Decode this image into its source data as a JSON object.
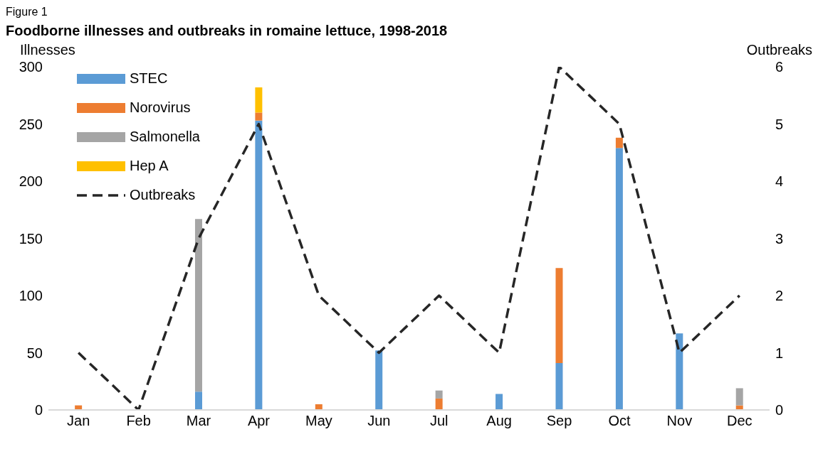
{
  "chart_data": {
    "type": "bar",
    "title": "Foodborne illnesses and outbreaks in romaine lettuce, 1998-2018",
    "annotations": [
      "Figure 1"
    ],
    "ylabel": "Illnesses",
    "y2label": "Outbreaks",
    "categories": [
      "Jan",
      "Feb",
      "Mar",
      "Apr",
      "May",
      "Jun",
      "Jul",
      "Aug",
      "Sep",
      "Oct",
      "Nov",
      "Dec"
    ],
    "stacked": true,
    "ylim": [
      0,
      300
    ],
    "yticks": [
      0,
      50,
      100,
      150,
      200,
      250,
      300
    ],
    "y2lim": [
      0,
      6
    ],
    "y2ticks": [
      0,
      1,
      2,
      3,
      4,
      5,
      6
    ],
    "legend": "top left",
    "series": [
      {
        "name": "STEC",
        "color": "#5b9bd5",
        "values": [
          0,
          0,
          16,
          253,
          0,
          52,
          0,
          14,
          41,
          229,
          67,
          0
        ]
      },
      {
        "name": "Norovirus",
        "color": "#ed7d31",
        "values": [
          4,
          0,
          0,
          7,
          5,
          0,
          10,
          0,
          83,
          9,
          0,
          4
        ]
      },
      {
        "name": "Salmonella",
        "color": "#a5a5a5",
        "values": [
          0,
          0,
          151,
          0,
          0,
          0,
          7,
          0,
          0,
          0,
          0,
          15
        ]
      },
      {
        "name": "Hep A",
        "color": "#ffc000",
        "values": [
          0,
          0,
          0,
          22,
          0,
          0,
          0,
          0,
          0,
          0,
          0,
          0
        ]
      },
      {
        "name": "Outbreaks",
        "type": "line",
        "axis": "y2",
        "color": "#262626",
        "line_style": "dashed",
        "marker": "none",
        "values": [
          1,
          0,
          3,
          5,
          2,
          1,
          2,
          1,
          6,
          5,
          1,
          2
        ]
      }
    ]
  }
}
